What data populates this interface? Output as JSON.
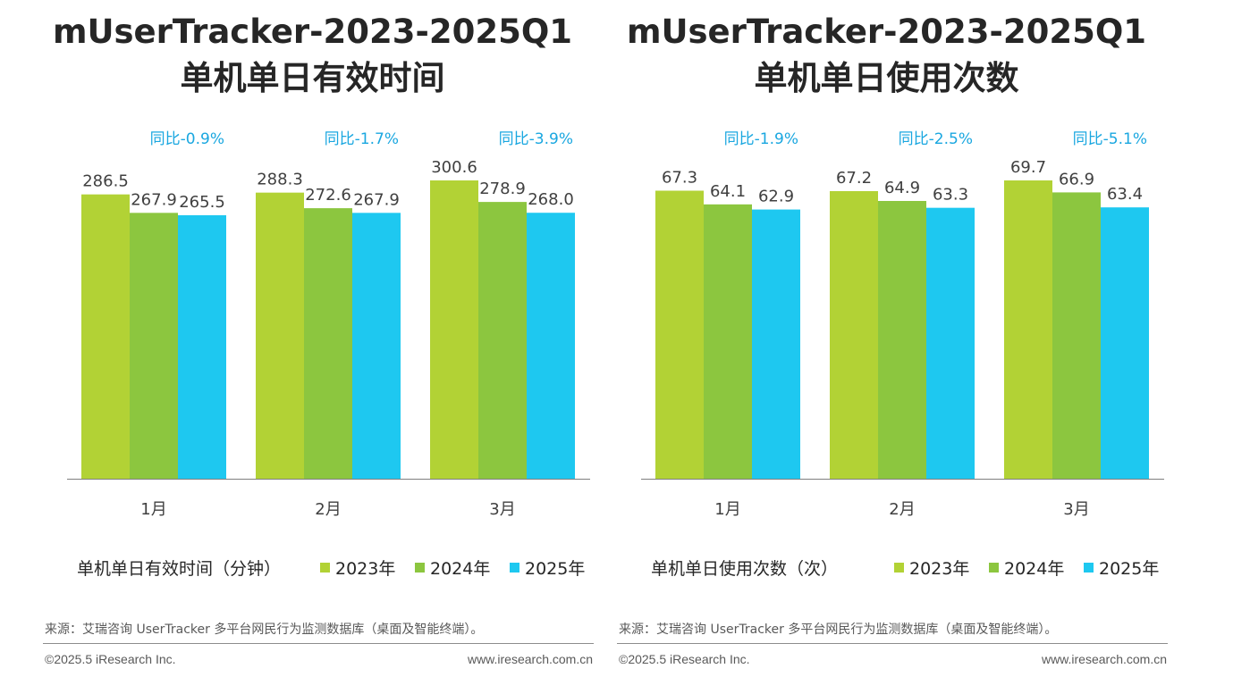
{
  "colors": {
    "y2023": "#b2d235",
    "y2024": "#8cc63f",
    "y2025": "#1ec8f0",
    "yoy": "#1aa7e0"
  },
  "chart_data": [
    {
      "type": "bar",
      "title_line1": "mUserTracker-2023-2025Q1",
      "title_line2": "单机单日有效时间",
      "categories": [
        "1月",
        "2月",
        "3月"
      ],
      "series": [
        {
          "name": "2023年",
          "values": [
            286.5,
            288.3,
            300.6
          ],
          "labels": [
            "286.5",
            "288.3",
            "300.6"
          ]
        },
        {
          "name": "2024年",
          "values": [
            267.9,
            272.6,
            278.9
          ],
          "labels": [
            "267.9",
            "272.6",
            "278.9"
          ]
        },
        {
          "name": "2025年",
          "values": [
            265.5,
            267.9,
            268.0
          ],
          "labels": [
            "265.5",
            "267.9",
            "268.0"
          ]
        }
      ],
      "yoy": [
        "同比-0.9%",
        "同比-1.7%",
        "同比-3.9%"
      ],
      "legend_title": "单机单日有效时间（分钟）",
      "ylim": [
        0,
        300.6
      ],
      "grid": false
    },
    {
      "type": "bar",
      "title_line1": "mUserTracker-2023-2025Q1",
      "title_line2": "单机单日使用次数",
      "categories": [
        "1月",
        "2月",
        "3月"
      ],
      "series": [
        {
          "name": "2023年",
          "values": [
            67.3,
            67.2,
            69.7
          ],
          "labels": [
            "67.3",
            "67.2",
            "69.7"
          ]
        },
        {
          "name": "2024年",
          "values": [
            64.1,
            64.9,
            66.9
          ],
          "labels": [
            "64.1",
            "64.9",
            "66.9"
          ]
        },
        {
          "name": "2025年",
          "values": [
            62.9,
            63.3,
            63.4
          ],
          "labels": [
            "62.9",
            "63.3",
            "63.4"
          ]
        }
      ],
      "yoy": [
        "同比-1.9%",
        "同比-2.5%",
        "同比-5.1%"
      ],
      "legend_title": "单机单日使用次数（次）",
      "ylim": [
        0,
        69.7
      ],
      "grid": false
    }
  ],
  "footer": {
    "source": "来源：艾瑞咨询 UserTracker 多平台网民行为监测数据库（桌面及智能终端）。",
    "copyright": "©2025.5 iResearch Inc.",
    "site": "www.iresearch.com.cn"
  }
}
